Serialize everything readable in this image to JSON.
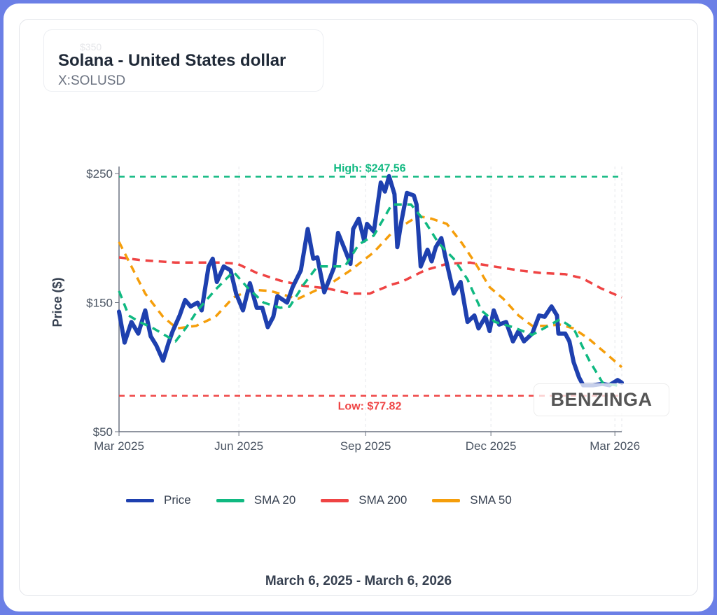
{
  "header": {
    "ghost_label": "$350",
    "title": "Solana - United States dollar",
    "symbol": "X:SOLUSD"
  },
  "watermark": "BENZINGA",
  "date_range": "March 6, 2025 - March 6, 2026",
  "colors": {
    "price": "#1e40af",
    "sma20": "#10b981",
    "sma200": "#ef4444",
    "sma50": "#f59e0b"
  },
  "chart_data": {
    "type": "line",
    "xlabel": "",
    "ylabel": "Price ($)",
    "x_unit": "days since March 6, 2025",
    "xlim": [
      0,
      365
    ],
    "ylim": [
      50,
      250
    ],
    "y_ticks": [
      {
        "value": 250,
        "label": "$250"
      },
      {
        "value": 150,
        "label": "$150"
      },
      {
        "value": 50,
        "label": "$50"
      }
    ],
    "x_ticks": [
      {
        "value": 0,
        "label": "Mar 2025"
      },
      {
        "value": 87,
        "label": "Jun 2025"
      },
      {
        "value": 179,
        "label": "Sep 2025"
      },
      {
        "value": 270,
        "label": "Dec 2025"
      },
      {
        "value": 360,
        "label": "Mar 2026"
      }
    ],
    "annotations": {
      "high": {
        "value": 247.56,
        "label": "High: $247.56"
      },
      "low": {
        "value": 77.82,
        "label": "Low: $77.82"
      }
    },
    "legend": {
      "position": "bottom"
    },
    "series": [
      {
        "key": "price",
        "name": "Price",
        "style": "solid",
        "points": [
          [
            0,
            143
          ],
          [
            4,
            119
          ],
          [
            9,
            135
          ],
          [
            14,
            126
          ],
          [
            19,
            144
          ],
          [
            23,
            124
          ],
          [
            27,
            117
          ],
          [
            32,
            105
          ],
          [
            36,
            119
          ],
          [
            39,
            128
          ],
          [
            44,
            140
          ],
          [
            48,
            152
          ],
          [
            52,
            147
          ],
          [
            57,
            150
          ],
          [
            60,
            144
          ],
          [
            65,
            178
          ],
          [
            68,
            184
          ],
          [
            71,
            166
          ],
          [
            76,
            178
          ],
          [
            81,
            175
          ],
          [
            85,
            157
          ],
          [
            90,
            144
          ],
          [
            95,
            165
          ],
          [
            100,
            146
          ],
          [
            104,
            146
          ],
          [
            108,
            131
          ],
          [
            112,
            139
          ],
          [
            115,
            155
          ],
          [
            122,
            150
          ],
          [
            126,
            162
          ],
          [
            132,
            175
          ],
          [
            137,
            207
          ],
          [
            141,
            184
          ],
          [
            144,
            185
          ],
          [
            149,
            158
          ],
          [
            156,
            177
          ],
          [
            159,
            204
          ],
          [
            164,
            191
          ],
          [
            168,
            180
          ],
          [
            170,
            207
          ],
          [
            174,
            215
          ],
          [
            178,
            198
          ],
          [
            180,
            211
          ],
          [
            185,
            205
          ],
          [
            190,
            243
          ],
          [
            193,
            236
          ],
          [
            196,
            248
          ],
          [
            200,
            234
          ],
          [
            202,
            193
          ],
          [
            205,
            213
          ],
          [
            209,
            235
          ],
          [
            214,
            233
          ],
          [
            216,
            226
          ],
          [
            219,
            178
          ],
          [
            224,
            191
          ],
          [
            227,
            182
          ],
          [
            230,
            193
          ],
          [
            234,
            200
          ],
          [
            237,
            185
          ],
          [
            243,
            157
          ],
          [
            248,
            166
          ],
          [
            253,
            135
          ],
          [
            258,
            140
          ],
          [
            261,
            130
          ],
          [
            266,
            139
          ],
          [
            269,
            128
          ],
          [
            272,
            144
          ],
          [
            276,
            133
          ],
          [
            281,
            135
          ],
          [
            286,
            120
          ],
          [
            290,
            128
          ],
          [
            294,
            120
          ],
          [
            300,
            126
          ],
          [
            305,
            140
          ],
          [
            309,
            139
          ],
          [
            314,
            147
          ],
          [
            318,
            140
          ],
          [
            319,
            126
          ],
          [
            324,
            126
          ],
          [
            327,
            120
          ],
          [
            330,
            104
          ],
          [
            334,
            92
          ],
          [
            337,
            86
          ],
          [
            344,
            86
          ],
          [
            351,
            87
          ],
          [
            356,
            86
          ],
          [
            362,
            90
          ],
          [
            365,
            88
          ]
        ]
      },
      {
        "key": "sma20",
        "name": "SMA 20",
        "style": "dashed",
        "points": [
          [
            0,
            159
          ],
          [
            7,
            140
          ],
          [
            15,
            135
          ],
          [
            25,
            130
          ],
          [
            41,
            120
          ],
          [
            49,
            131
          ],
          [
            57,
            144
          ],
          [
            70,
            160
          ],
          [
            83,
            174
          ],
          [
            93,
            162
          ],
          [
            105,
            150
          ],
          [
            117,
            146
          ],
          [
            124,
            147
          ],
          [
            134,
            164
          ],
          [
            144,
            178
          ],
          [
            154,
            178
          ],
          [
            164,
            178
          ],
          [
            174,
            195
          ],
          [
            185,
            202
          ],
          [
            198,
            226
          ],
          [
            212,
            226
          ],
          [
            222,
            213
          ],
          [
            232,
            196
          ],
          [
            243,
            184
          ],
          [
            253,
            168
          ],
          [
            263,
            144
          ],
          [
            273,
            135
          ],
          [
            286,
            131
          ],
          [
            300,
            125
          ],
          [
            310,
            131
          ],
          [
            320,
            137
          ],
          [
            330,
            130
          ],
          [
            341,
            106
          ],
          [
            351,
            88
          ],
          [
            365,
            85
          ]
        ]
      },
      {
        "key": "sma200",
        "name": "SMA 200",
        "style": "dashed",
        "points": [
          [
            0,
            185
          ],
          [
            15,
            183
          ],
          [
            41,
            181
          ],
          [
            75,
            181
          ],
          [
            86,
            180
          ],
          [
            100,
            173
          ],
          [
            117,
            167
          ],
          [
            134,
            163
          ],
          [
            151,
            161
          ],
          [
            168,
            157
          ],
          [
            182,
            157
          ],
          [
            198,
            164
          ],
          [
            205,
            166
          ],
          [
            222,
            175
          ],
          [
            238,
            180
          ],
          [
            255,
            181
          ],
          [
            272,
            178
          ],
          [
            290,
            175
          ],
          [
            306,
            173
          ],
          [
            324,
            172
          ],
          [
            336,
            169
          ],
          [
            350,
            161
          ],
          [
            365,
            154
          ]
        ]
      },
      {
        "key": "sma50",
        "name": "SMA 50",
        "style": "dashed",
        "points": [
          [
            0,
            197
          ],
          [
            9,
            178
          ],
          [
            19,
            157
          ],
          [
            32,
            139
          ],
          [
            42,
            130
          ],
          [
            56,
            132
          ],
          [
            70,
            139
          ],
          [
            83,
            154
          ],
          [
            96,
            160
          ],
          [
            110,
            159
          ],
          [
            123,
            155
          ],
          [
            130,
            153
          ],
          [
            144,
            160
          ],
          [
            154,
            165
          ],
          [
            168,
            175
          ],
          [
            185,
            189
          ],
          [
            198,
            204
          ],
          [
            208,
            211
          ],
          [
            217,
            217
          ],
          [
            227,
            215
          ],
          [
            238,
            211
          ],
          [
            249,
            196
          ],
          [
            259,
            180
          ],
          [
            269,
            162
          ],
          [
            279,
            153
          ],
          [
            290,
            140
          ],
          [
            300,
            132
          ],
          [
            310,
            132
          ],
          [
            320,
            133
          ],
          [
            330,
            130
          ],
          [
            341,
            122
          ],
          [
            352,
            112
          ],
          [
            365,
            100
          ]
        ]
      }
    ]
  }
}
